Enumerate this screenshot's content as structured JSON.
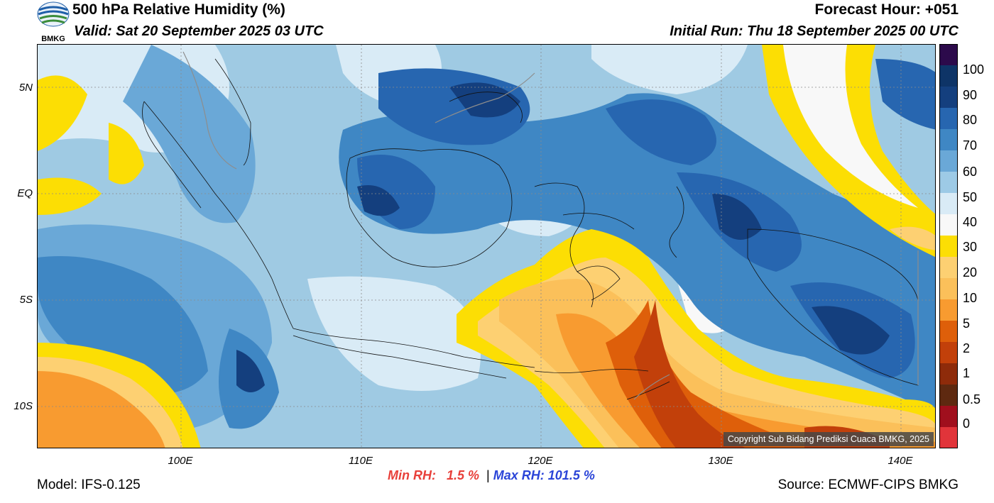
{
  "header": {
    "title": "500 hPa Relative Humidity (%)",
    "valid": "Valid: Sat 20 September 2025 03 UTC",
    "forecast_hour": "Forecast Hour: +051",
    "initial_run": "Initial Run: Thu 18 September 2025 00 UTC"
  },
  "logo": {
    "text": "BMKG",
    "icon": "bmkg-logo-icon"
  },
  "map": {
    "lat_labels": [
      "5N",
      "EQ",
      "5S",
      "10S"
    ],
    "lon_labels": [
      "100E",
      "110E",
      "120E",
      "130E",
      "140E"
    ],
    "copyright": "Copyright Sub Bidang Prediksi Cuaca BMKG, 2025"
  },
  "colorbar": {
    "labels": [
      "100",
      "90",
      "80",
      "70",
      "60",
      "50",
      "40",
      "30",
      "20",
      "10",
      "5",
      "2",
      "1",
      "0.5",
      "0"
    ],
    "colors": [
      "#2c0a4b",
      "#0e3467",
      "#143f7e",
      "#2766b0",
      "#3f87c4",
      "#6aa8d7",
      "#9dcae6",
      "#d9ebf6",
      "#f8f8f8",
      "#fcde04",
      "#fdd072",
      "#fbc05a",
      "#f89b30",
      "#de5f0a",
      "#c2400a",
      "#8e2b0a",
      "#5e2910",
      "#a00f1d",
      "#e1343a"
    ]
  },
  "stats": {
    "min_label": "Min RH:",
    "min_value": "1.5 %",
    "separator": "|",
    "max_label": "Max RH:",
    "max_value": "101.5 %"
  },
  "footer": {
    "model": "Model: IFS-0.125",
    "source": "Source: ECMWF-CIPS BMKG"
  }
}
